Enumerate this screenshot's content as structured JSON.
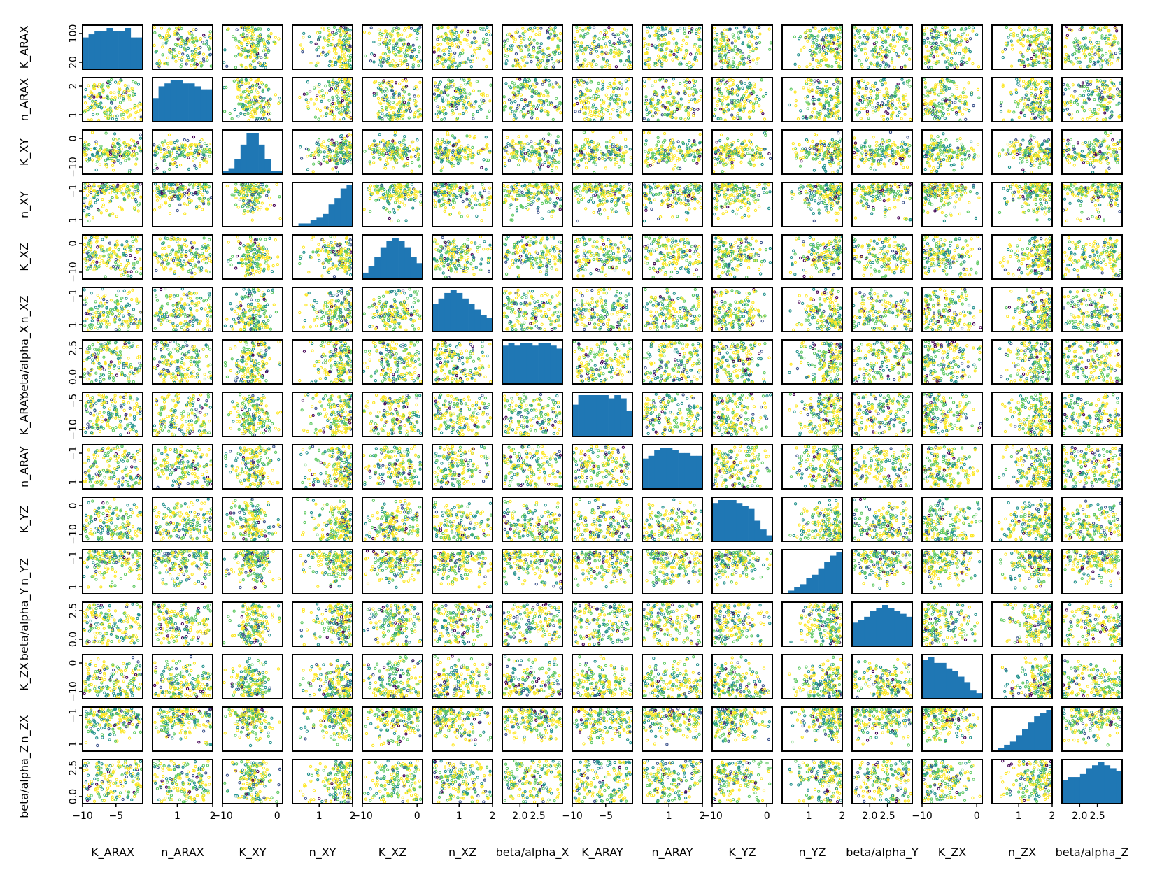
{
  "chart_data": {
    "type": "scatter-matrix",
    "variables": [
      "K_ARAX",
      "n_ARAX",
      "K_XY",
      "n_XY",
      "K_XZ",
      "n_XZ",
      "beta/alpha_X",
      "K_ARAY",
      "n_ARAY",
      "K_YZ",
      "n_YZ",
      "beta/alpha_Y",
      "K_ZX",
      "n_ZX",
      "beta/alpha_Z"
    ],
    "ranges": [
      [
        -10,
        -1
      ],
      [
        0.3,
        2
      ],
      [
        -10,
        1
      ],
      [
        0.2,
        2
      ],
      [
        -10,
        1
      ],
      [
        0.2,
        2
      ],
      [
        1.5,
        3.2
      ],
      [
        -10,
        -1
      ],
      [
        0.2,
        2
      ],
      [
        -10,
        1
      ],
      [
        0.2,
        2
      ],
      [
        1.5,
        3.2
      ],
      [
        -10,
        1
      ],
      [
        0.2,
        2
      ],
      [
        1.5,
        3.2
      ]
    ],
    "x_ticks": [
      [
        -10,
        -5
      ],
      [
        1,
        2
      ],
      [
        -10,
        0
      ],
      [
        1,
        2
      ],
      [
        -10,
        0
      ],
      [
        1,
        2
      ],
      [
        2.0,
        2.5
      ],
      [
        -10,
        -5
      ],
      [
        1,
        2
      ],
      [
        -10,
        0
      ],
      [
        1,
        2
      ],
      [
        2.0,
        2.5
      ],
      [
        -10,
        0
      ],
      [
        1,
        2
      ],
      [
        2.0,
        2.5
      ]
    ],
    "x_tick_labels": [
      [
        "−10",
        "−5"
      ],
      [
        "1",
        "2"
      ],
      [
        "−10",
        "0"
      ],
      [
        "1",
        "2"
      ],
      [
        "−10",
        "0"
      ],
      [
        "1",
        "2"
      ],
      [
        "2.0",
        "2.5"
      ],
      [
        "−10",
        "−5"
      ],
      [
        "1",
        "2"
      ],
      [
        "−10",
        "0"
      ],
      [
        "1",
        "2"
      ],
      [
        "2.0",
        "2.5"
      ],
      [
        "−10",
        "0"
      ],
      [
        "1",
        "2"
      ],
      [
        "2.0",
        "2.5"
      ]
    ],
    "y_tick_labels": [
      [
        "20",
        "100"
      ],
      [
        "1",
        "2"
      ],
      [
        "−10",
        "0"
      ],
      [
        "1",
        "−1"
      ],
      [
        "−10",
        "0"
      ],
      [
        "1",
        "−1"
      ],
      [
        "0.0",
        "2.5"
      ],
      [
        "−10",
        "−5"
      ],
      [
        "1",
        "−1"
      ],
      [
        "−10",
        "0"
      ],
      [
        "1",
        "−1"
      ],
      [
        "0.0",
        "2.5"
      ],
      [
        "−10",
        "0"
      ],
      [
        "1",
        "−1"
      ],
      [
        "0.0",
        "2.5"
      ]
    ],
    "histograms": [
      [
        10,
        11,
        12,
        12,
        13,
        12,
        12,
        13,
        10,
        10
      ],
      [
        8,
        12,
        13,
        14,
        14,
        13,
        13,
        12,
        11,
        11
      ],
      [
        1,
        2,
        5,
        10,
        14,
        14,
        10,
        5,
        1,
        1
      ],
      [
        0,
        1,
        1,
        2,
        3,
        4,
        7,
        9,
        12,
        13
      ],
      [
        2,
        4,
        7,
        10,
        12,
        13,
        12,
        10,
        7,
        5
      ],
      [
        10,
        12,
        14,
        15,
        14,
        12,
        10,
        8,
        6,
        5
      ],
      [
        13,
        14,
        13,
        14,
        14,
        13,
        14,
        14,
        13,
        12
      ],
      [
        10,
        13,
        13,
        13,
        13,
        13,
        12,
        13,
        12,
        8
      ],
      [
        11,
        12,
        14,
        15,
        15,
        14,
        13,
        13,
        12,
        12
      ],
      [
        13,
        14,
        14,
        14,
        13,
        12,
        11,
        7,
        4,
        2
      ],
      [
        0,
        1,
        2,
        3,
        5,
        6,
        8,
        10,
        12,
        13
      ],
      [
        8,
        9,
        10,
        12,
        13,
        14,
        13,
        12,
        11,
        10
      ],
      [
        14,
        15,
        13,
        13,
        11,
        10,
        8,
        6,
        3,
        2
      ],
      [
        0,
        1,
        2,
        3,
        5,
        7,
        9,
        11,
        12,
        13
      ],
      [
        8,
        9,
        9,
        10,
        12,
        13,
        14,
        13,
        12,
        11
      ]
    ],
    "grid": false,
    "legend": "none",
    "histogram_color": "#1f77b4",
    "colormap": [
      "#440154",
      "#3b528b",
      "#21918c",
      "#5ec962",
      "#fde725"
    ]
  }
}
